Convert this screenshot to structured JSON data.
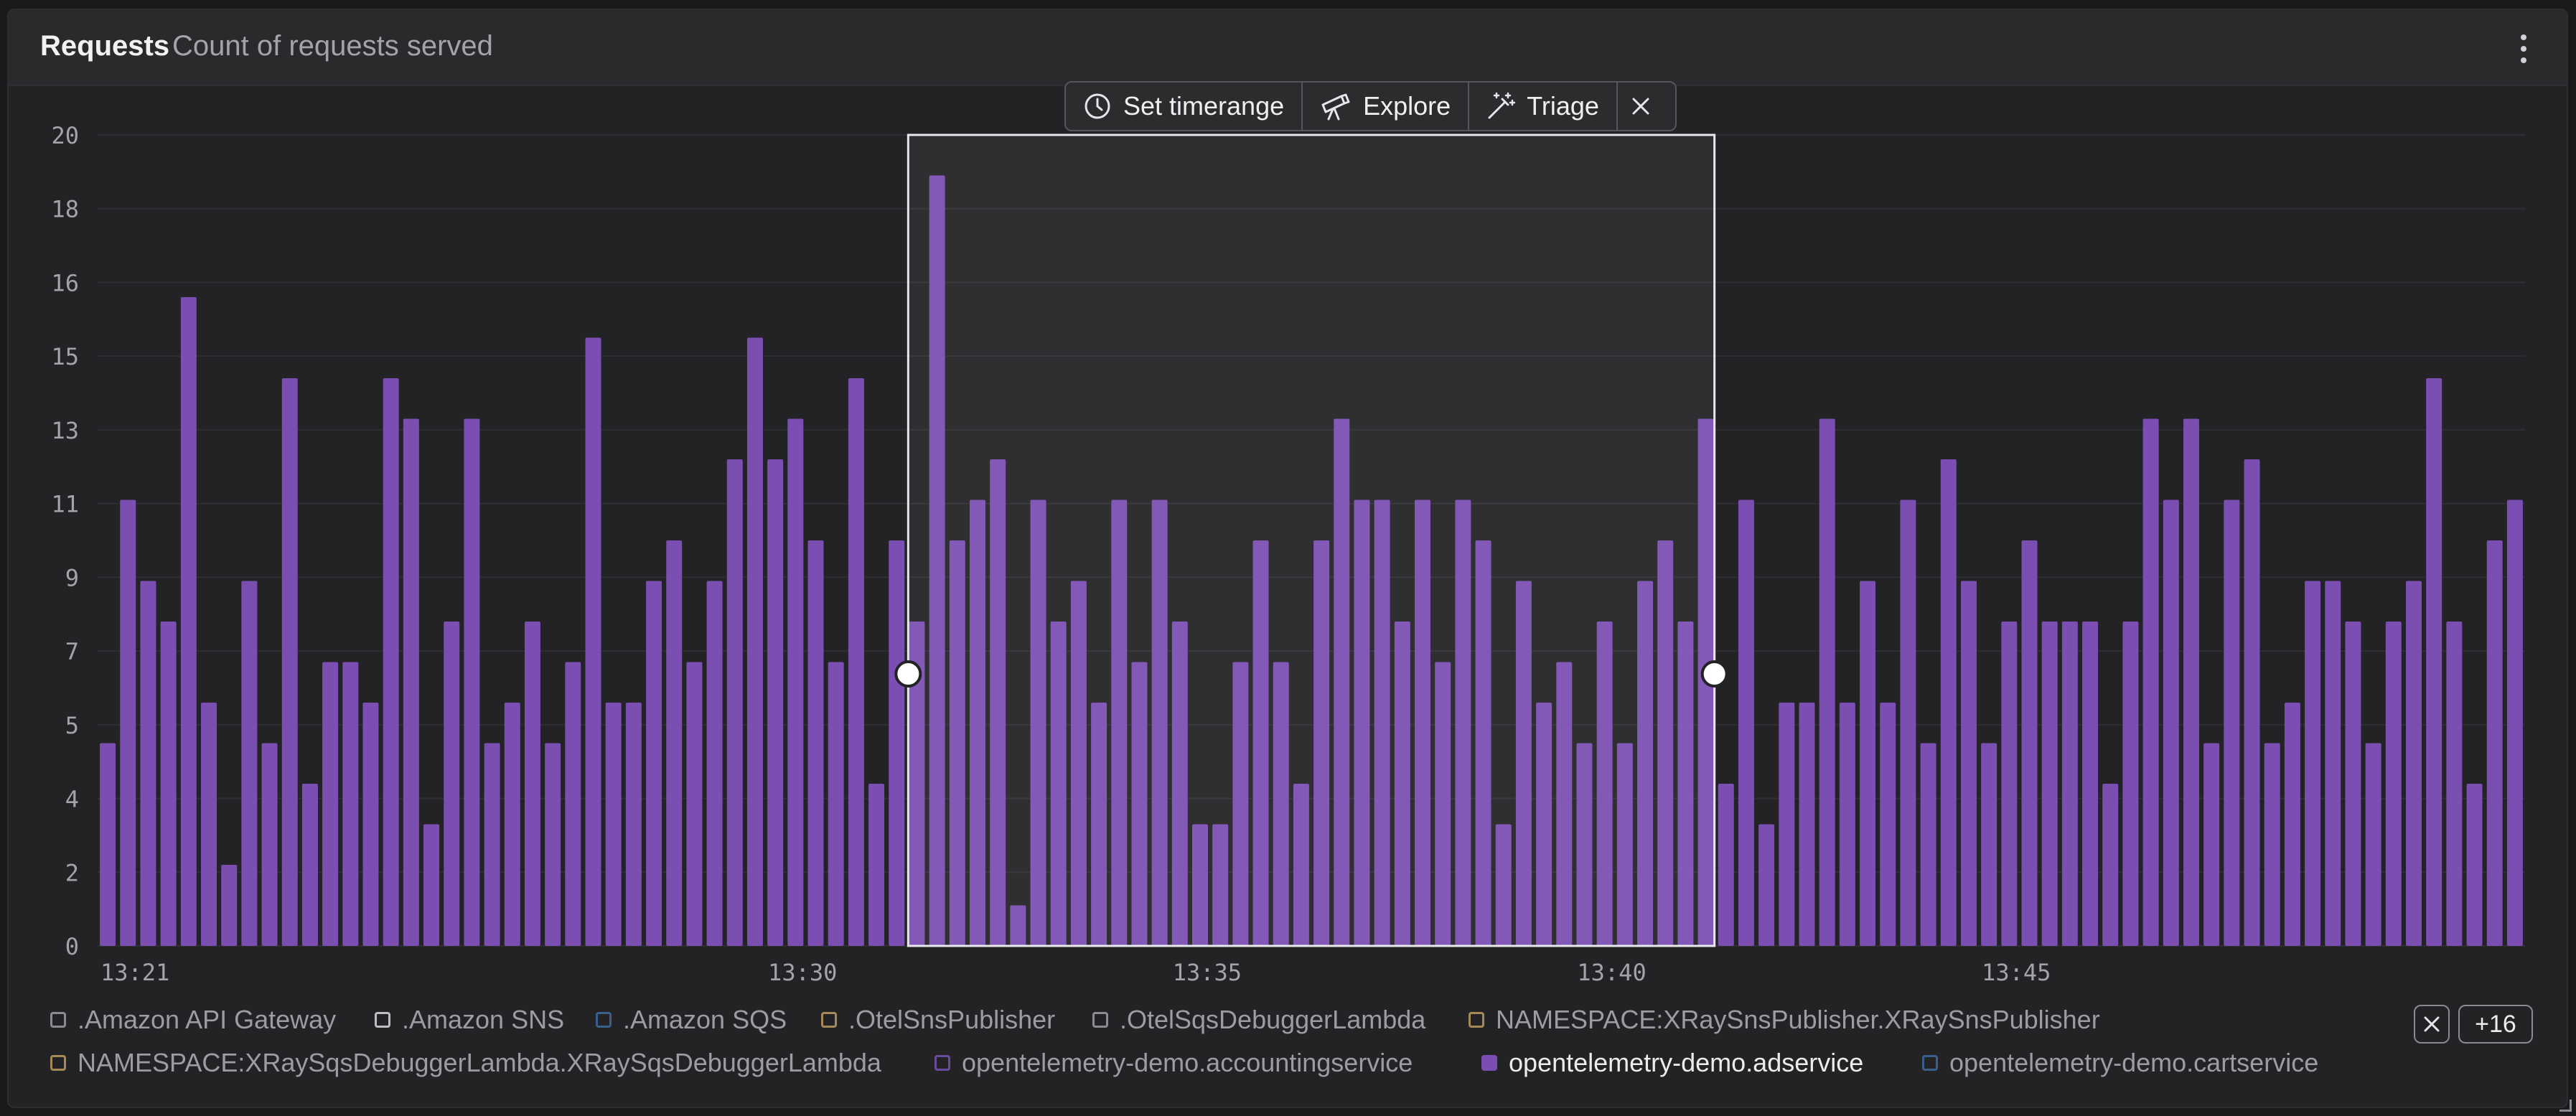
{
  "panel": {
    "title": "Requests",
    "subtitle": "Count of requests served"
  },
  "toolbar": {
    "set_timerange": "Set timerange",
    "explore": "Explore",
    "triage": "Triage"
  },
  "chart_data": {
    "type": "bar",
    "yticks": [
      "20",
      "18",
      "16",
      "15",
      "13",
      "11",
      "9",
      "7",
      "5",
      "4",
      "2",
      "0"
    ],
    "xticks": [
      {
        "label": "13:21",
        "index": 0
      },
      {
        "label": "13:30",
        "index": 33
      },
      {
        "label": "13:35",
        "index": 53
      },
      {
        "label": "13:40",
        "index": 73
      },
      {
        "label": "13:45",
        "index": 93
      }
    ],
    "ylim": [
      0,
      20
    ],
    "color": "#7b4fb2",
    "values": [
      5,
      11,
      9,
      8,
      16,
      6,
      2,
      9,
      5,
      14,
      4,
      7,
      7,
      6,
      14,
      13,
      3,
      8,
      13,
      5,
      6,
      8,
      5,
      7,
      15,
      6,
      6,
      9,
      10,
      7,
      9,
      12,
      15,
      12,
      13,
      10,
      7,
      14,
      4,
      10,
      8,
      19,
      10,
      11,
      12,
      1,
      11,
      8,
      9,
      6,
      11,
      7,
      11,
      8,
      3,
      3,
      7,
      10,
      7,
      4,
      10,
      13,
      11,
      11,
      8,
      11,
      7,
      11,
      10,
      3,
      9,
      6,
      7,
      5,
      8,
      5,
      9,
      10,
      8,
      13,
      4,
      11,
      3,
      6,
      6,
      13,
      6,
      9,
      6,
      11,
      5,
      12,
      9,
      5,
      8,
      10,
      8,
      8,
      8,
      4,
      8,
      13,
      11,
      13,
      5,
      11,
      12,
      5,
      6,
      9,
      9,
      8,
      5,
      8,
      9,
      14,
      8,
      4,
      10,
      11
    ],
    "selection": {
      "start_index": 40,
      "end_index": 79
    }
  },
  "legend": {
    "items": [
      {
        "label": ".Amazon API Gateway",
        "color": "#8b8b90",
        "active": false
      },
      {
        "label": ".Amazon SNS",
        "color": "#bdbdc2",
        "active": false
      },
      {
        "label": ".Amazon SQS",
        "color": "#3a5f8c",
        "active": false
      },
      {
        "label": ".OtelSnsPublisher",
        "color": "#a58a55",
        "active": false
      },
      {
        "label": ".OtelSqsDebuggerLambda",
        "color": "#8b8b90",
        "active": false
      },
      {
        "label": "NAMESPACE:XRaySnsPublisher.XRaySnsPublisher",
        "color": "#a58a55",
        "active": false
      },
      {
        "label": "NAMESPACE:XRaySqsDebuggerLambda.XRaySqsDebuggerLambda",
        "color": "#a58a55",
        "active": false
      },
      {
        "label": "opentelemetry-demo.accountingservice",
        "color": "#6a4a9a",
        "active": false
      },
      {
        "label": "opentelemetry-demo.adservice",
        "color": "#7b4fb2",
        "active": true
      },
      {
        "label": "opentelemetry-demo.cartservice",
        "color": "#3a5f8c",
        "active": false
      }
    ],
    "more_label": "+16"
  }
}
